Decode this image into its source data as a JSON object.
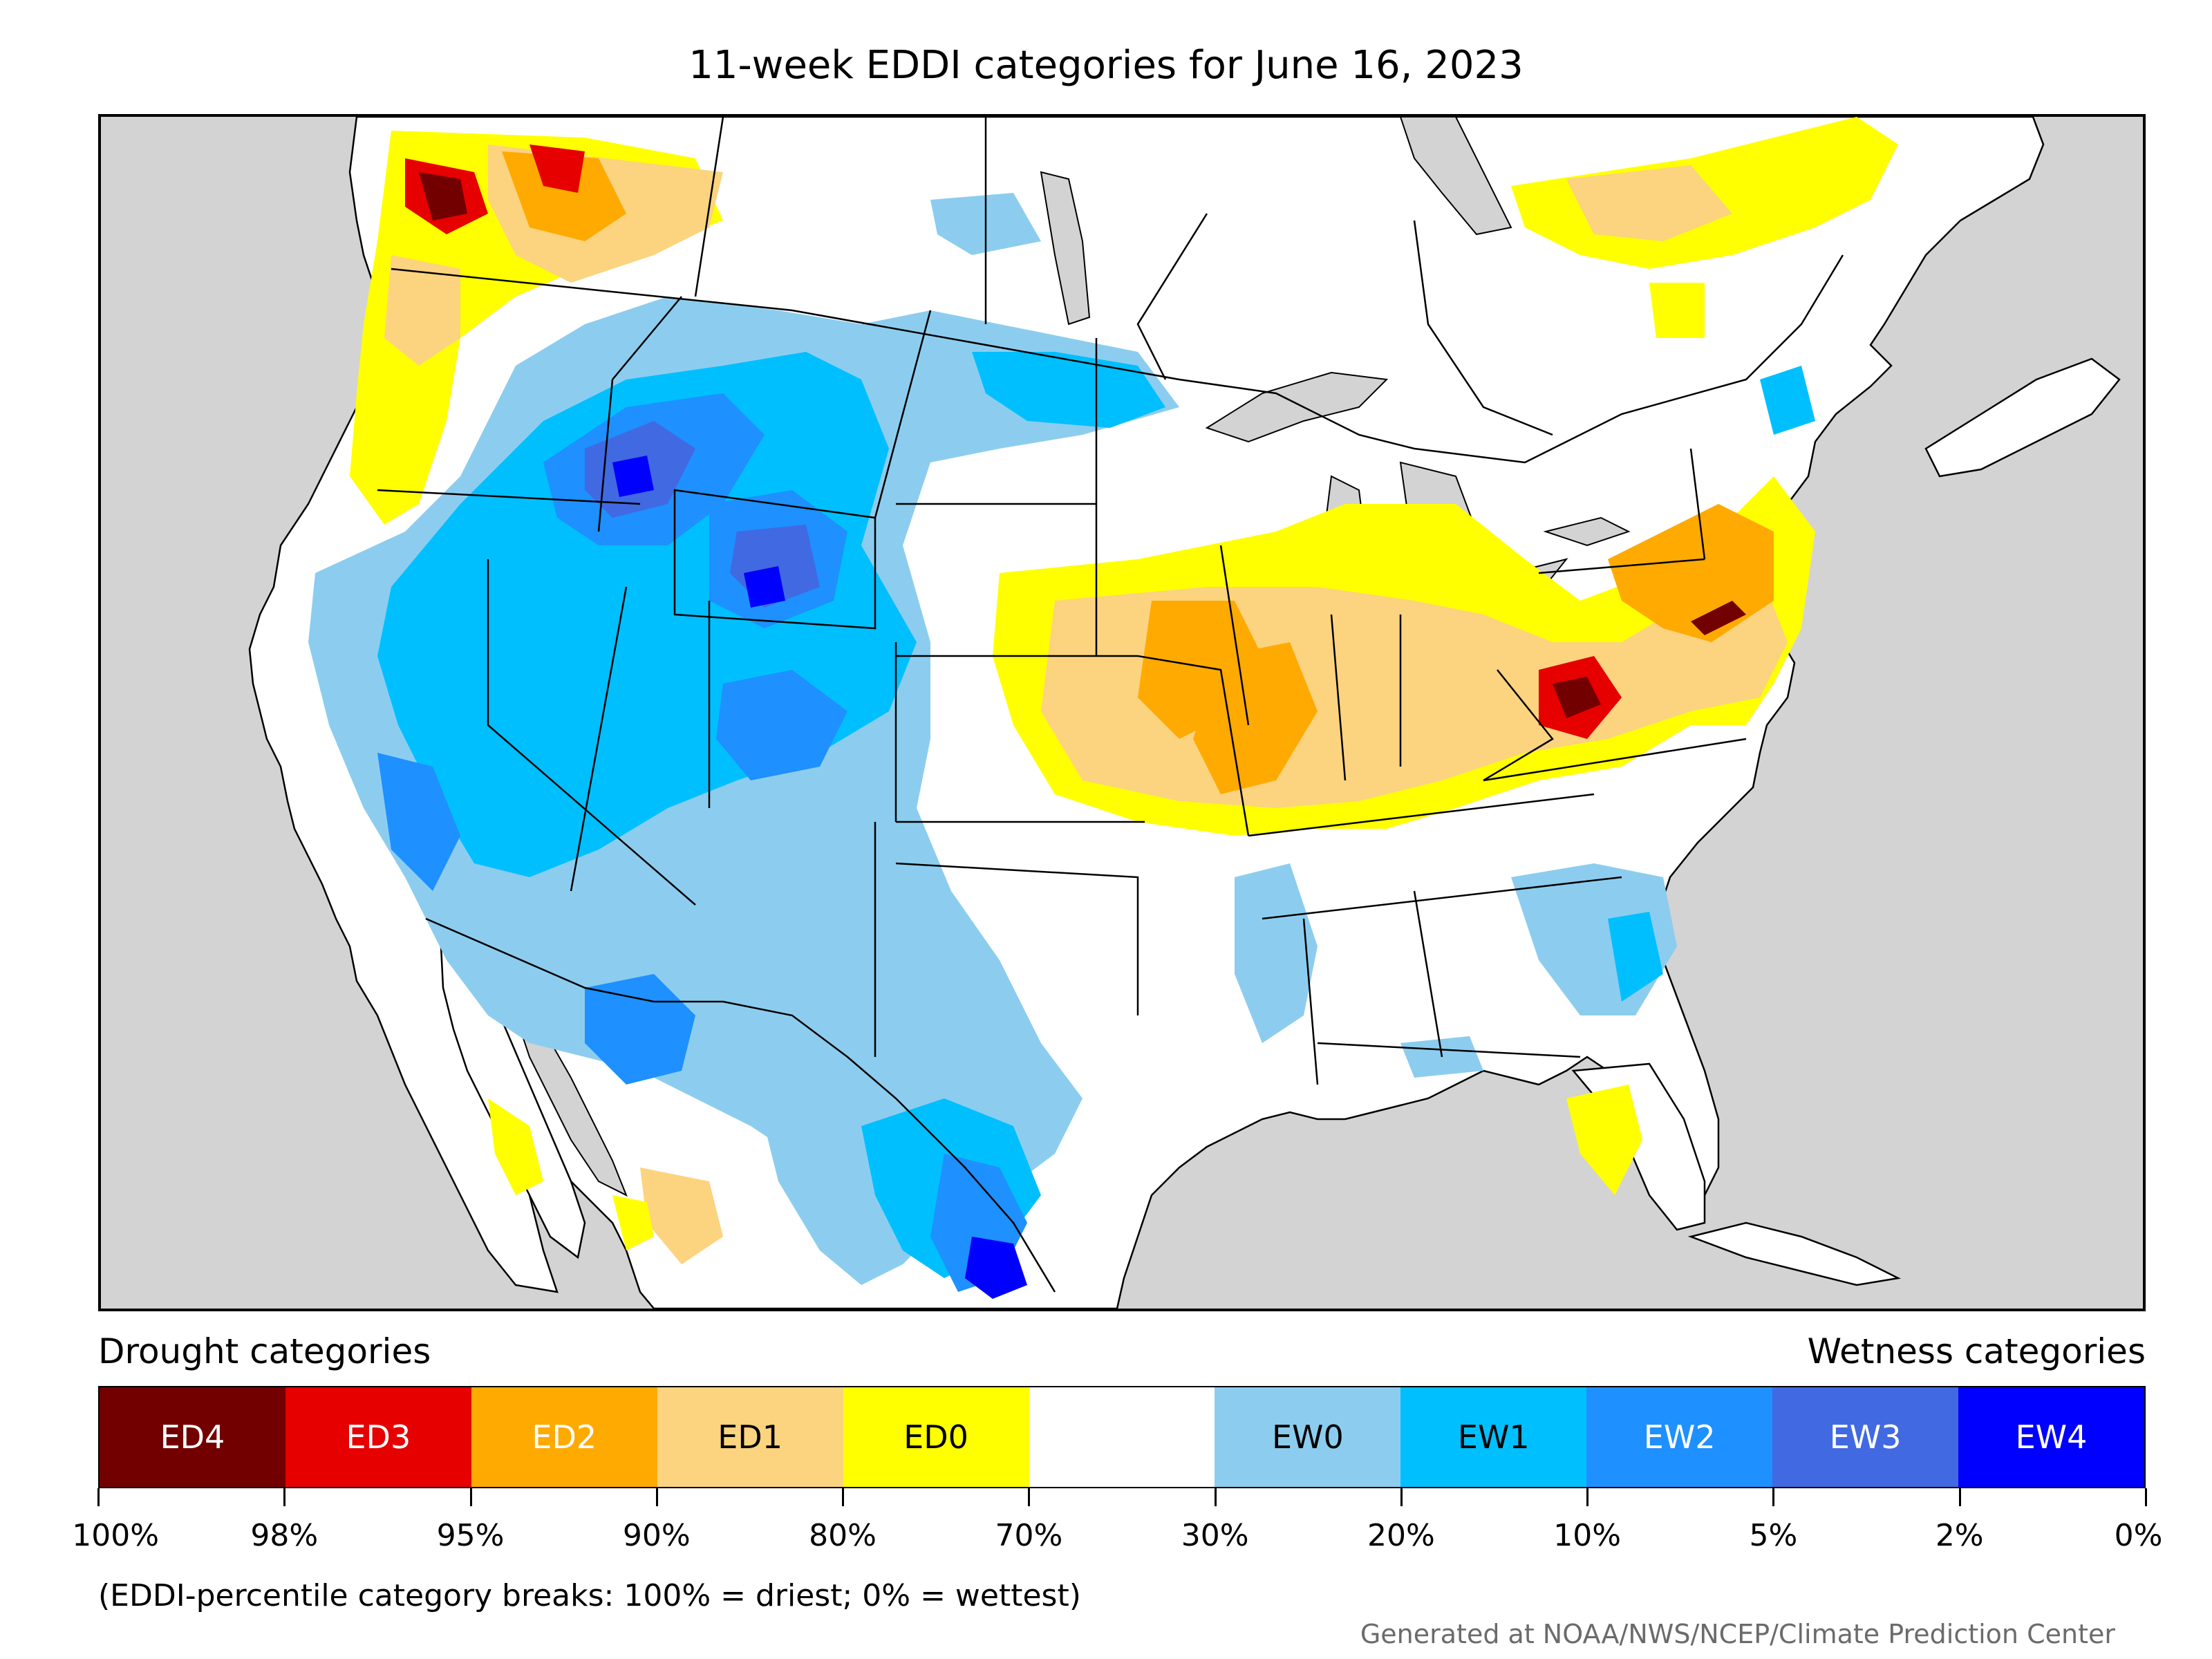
{
  "title": "11-week EDDI categories for June 16, 2023",
  "legend": {
    "drought_title": "Drought categories",
    "wetness_title": "Wetness categories",
    "categories": [
      {
        "label": "ED4",
        "color": "#730000",
        "text_color": "#ffffff"
      },
      {
        "label": "ED3",
        "color": "#e60000",
        "text_color": "#ffffff"
      },
      {
        "label": "ED2",
        "color": "#ffaa00",
        "text_color": "#ffffff"
      },
      {
        "label": "ED1",
        "color": "#fcd37f",
        "text_color": "#000000"
      },
      {
        "label": "ED0",
        "color": "#ffff00",
        "text_color": "#000000"
      },
      {
        "label": "",
        "color": "#ffffff",
        "text_color": "#000000"
      },
      {
        "label": "EW0",
        "color": "#8ccdef",
        "text_color": "#000000"
      },
      {
        "label": "EW1",
        "color": "#00bfff",
        "text_color": "#000000"
      },
      {
        "label": "EW2",
        "color": "#1e90ff",
        "text_color": "#ffffff"
      },
      {
        "label": "EW3",
        "color": "#4169e1",
        "text_color": "#ffffff"
      },
      {
        "label": "EW4",
        "color": "#0000ff",
        "text_color": "#ffffff"
      }
    ],
    "ticks": [
      "100%",
      "98%",
      "95%",
      "90%",
      "80%",
      "70%",
      "30%",
      "20%",
      "10%",
      "5%",
      "2%",
      "0%"
    ]
  },
  "footnote": "(EDDI-percentile category breaks: 100% = driest; 0% = wettest)",
  "credit": "Generated at NOAA/NWS/NCEP/Climate Prediction Center",
  "colors": {
    "ocean": "#d3d3d3",
    "land": "#ffffff",
    "border": "#000000"
  }
}
